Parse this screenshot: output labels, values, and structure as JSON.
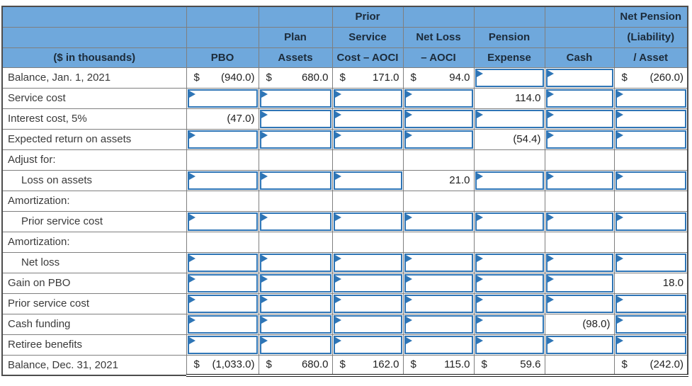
{
  "title": "Pension worksheet",
  "colors": {
    "header_bg": "#6fa8dc",
    "header_text": "#1c2b3a",
    "grid_border": "#7f7f7f",
    "outer_border": "#4d4d4d",
    "input_border": "#2e75b6",
    "value_text": "#1f1f1f"
  },
  "columns": [
    "label",
    "pbo",
    "plan-assets",
    "prior-service-cost-aoci",
    "net-loss-aoci",
    "pension-expense",
    "cash",
    "net-pension"
  ],
  "header": {
    "line1": [
      "",
      "",
      "",
      "Prior",
      "",
      "",
      "",
      "Net Pension"
    ],
    "line2": [
      "",
      "",
      "Plan",
      "Service",
      "Net Loss",
      "Pension",
      "",
      "(Liability)"
    ],
    "line3": [
      "($ in thousands)",
      "PBO",
      "Assets",
      "Cost – AOCI",
      "– AOCI",
      "Expense",
      "Cash",
      "/ Asset"
    ]
  },
  "rows": [
    {
      "label": "Balance, Jan. 1, 2021",
      "indent": false,
      "total": false,
      "cells": [
        {
          "t": "money",
          "c": "$",
          "v": "(940.0)"
        },
        {
          "t": "money",
          "c": "$",
          "v": "680.0"
        },
        {
          "t": "money",
          "c": "$",
          "v": "171.0"
        },
        {
          "t": "money",
          "c": "$",
          "v": "94.0"
        },
        {
          "t": "input"
        },
        {
          "t": "input"
        },
        {
          "t": "money",
          "c": "$",
          "v": "(260.0)"
        }
      ]
    },
    {
      "label": "Service cost",
      "indent": false,
      "total": false,
      "cells": [
        {
          "t": "input"
        },
        {
          "t": "input"
        },
        {
          "t": "input"
        },
        {
          "t": "input"
        },
        {
          "t": "num",
          "v": "114.0"
        },
        {
          "t": "input"
        },
        {
          "t": "input"
        }
      ]
    },
    {
      "label": "Interest cost, 5%",
      "indent": false,
      "total": false,
      "cells": [
        {
          "t": "num",
          "v": "(47.0)"
        },
        {
          "t": "input"
        },
        {
          "t": "input"
        },
        {
          "t": "input"
        },
        {
          "t": "input"
        },
        {
          "t": "input"
        },
        {
          "t": "input"
        }
      ]
    },
    {
      "label": "Expected return on assets",
      "indent": false,
      "total": false,
      "cells": [
        {
          "t": "input"
        },
        {
          "t": "input"
        },
        {
          "t": "input"
        },
        {
          "t": "input"
        },
        {
          "t": "num",
          "v": "(54.4)"
        },
        {
          "t": "input"
        },
        {
          "t": "input"
        }
      ]
    },
    {
      "label": "Adjust for:",
      "indent": false,
      "total": false,
      "cells": [
        {
          "t": "blank"
        },
        {
          "t": "blank"
        },
        {
          "t": "blank"
        },
        {
          "t": "blank"
        },
        {
          "t": "blank"
        },
        {
          "t": "blank"
        },
        {
          "t": "blank"
        }
      ]
    },
    {
      "label": "Loss on assets",
      "indent": true,
      "total": false,
      "cells": [
        {
          "t": "input"
        },
        {
          "t": "input"
        },
        {
          "t": "input"
        },
        {
          "t": "num",
          "v": "21.0"
        },
        {
          "t": "input"
        },
        {
          "t": "input"
        },
        {
          "t": "input"
        }
      ]
    },
    {
      "label": "Amortization:",
      "indent": false,
      "total": false,
      "cells": [
        {
          "t": "blank"
        },
        {
          "t": "blank"
        },
        {
          "t": "blank"
        },
        {
          "t": "blank"
        },
        {
          "t": "blank"
        },
        {
          "t": "blank"
        },
        {
          "t": "blank"
        }
      ]
    },
    {
      "label": "Prior service cost",
      "indent": true,
      "total": false,
      "cells": [
        {
          "t": "input"
        },
        {
          "t": "input"
        },
        {
          "t": "input"
        },
        {
          "t": "input"
        },
        {
          "t": "input"
        },
        {
          "t": "input"
        },
        {
          "t": "input"
        }
      ]
    },
    {
      "label": "Amortization:",
      "indent": false,
      "total": false,
      "cells": [
        {
          "t": "blank"
        },
        {
          "t": "blank"
        },
        {
          "t": "blank"
        },
        {
          "t": "blank"
        },
        {
          "t": "blank"
        },
        {
          "t": "blank"
        },
        {
          "t": "blank"
        }
      ]
    },
    {
      "label": "Net loss",
      "indent": true,
      "total": false,
      "cells": [
        {
          "t": "input"
        },
        {
          "t": "input"
        },
        {
          "t": "input"
        },
        {
          "t": "input"
        },
        {
          "t": "input"
        },
        {
          "t": "input"
        },
        {
          "t": "input"
        }
      ]
    },
    {
      "label": "Gain on PBO",
      "indent": false,
      "total": false,
      "cells": [
        {
          "t": "input"
        },
        {
          "t": "input"
        },
        {
          "t": "input"
        },
        {
          "t": "input"
        },
        {
          "t": "input"
        },
        {
          "t": "input"
        },
        {
          "t": "num",
          "v": "18.0"
        }
      ]
    },
    {
      "label": "Prior service cost",
      "indent": false,
      "total": false,
      "cells": [
        {
          "t": "input"
        },
        {
          "t": "input"
        },
        {
          "t": "input"
        },
        {
          "t": "input"
        },
        {
          "t": "input"
        },
        {
          "t": "input"
        },
        {
          "t": "input"
        }
      ]
    },
    {
      "label": "Cash funding",
      "indent": false,
      "total": false,
      "cells": [
        {
          "t": "input"
        },
        {
          "t": "input"
        },
        {
          "t": "input"
        },
        {
          "t": "input"
        },
        {
          "t": "input"
        },
        {
          "t": "num",
          "v": "(98.0)"
        },
        {
          "t": "input"
        }
      ]
    },
    {
      "label": "Retiree benefits",
      "indent": false,
      "total": false,
      "cells": [
        {
          "t": "input"
        },
        {
          "t": "input"
        },
        {
          "t": "input"
        },
        {
          "t": "input"
        },
        {
          "t": "input"
        },
        {
          "t": "input"
        },
        {
          "t": "input"
        }
      ]
    },
    {
      "label": "Balance, Dec. 31, 2021",
      "indent": false,
      "total": true,
      "cells": [
        {
          "t": "money",
          "c": "$",
          "v": "(1,033.0)"
        },
        {
          "t": "money",
          "c": "$",
          "v": "680.0"
        },
        {
          "t": "money",
          "c": "$",
          "v": "162.0"
        },
        {
          "t": "money",
          "c": "$",
          "v": "115.0"
        },
        {
          "t": "money",
          "c": "$",
          "v": "59.6"
        },
        {
          "t": "blank"
        },
        {
          "t": "money",
          "c": "$",
          "v": "(242.0)"
        }
      ]
    }
  ]
}
